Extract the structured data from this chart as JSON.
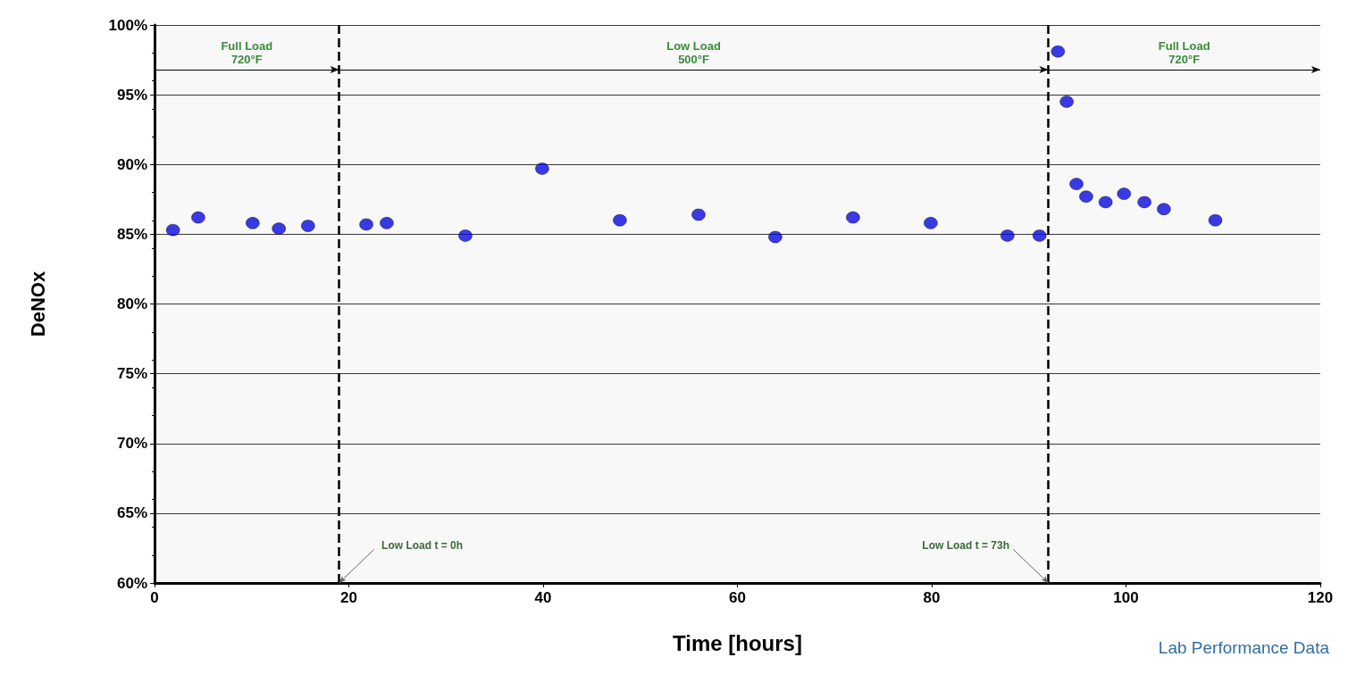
{
  "chart_data": {
    "type": "scatter",
    "xlabel": "Time [hours]",
    "ylabel": "DeNOx",
    "x": [
      1.9,
      4.5,
      10.1,
      12.8,
      15.8,
      21.8,
      23.9,
      32,
      39.9,
      47.9,
      56,
      63.9,
      71.9,
      79.9,
      87.8,
      91.1,
      93,
      93.9,
      94.9,
      95.9,
      97.9,
      99.8,
      101.9,
      103.9,
      109.2
    ],
    "values": [
      85.3,
      86.2,
      85.8,
      85.4,
      85.6,
      85.7,
      85.8,
      84.9,
      89.7,
      86.0,
      86.4,
      84.8,
      86.2,
      85.8,
      84.9,
      84.9,
      98.1,
      94.5,
      88.6,
      87.7,
      87.3,
      87.9,
      87.3,
      86.8,
      86.0
    ],
    "color": "#0a0ae0",
    "marker": "circle",
    "xlim": [
      0,
      120
    ],
    "xticks": [
      0,
      20,
      40,
      60,
      80,
      100,
      120
    ],
    "ylim": [
      60,
      100
    ],
    "yticks": [
      {
        "value": 60,
        "label": "60%"
      },
      {
        "value": 65,
        "label": "65%"
      },
      {
        "value": 70,
        "label": "70%"
      },
      {
        "value": 75,
        "label": "75%"
      },
      {
        "value": 80,
        "label": "80%"
      },
      {
        "value": 85,
        "label": "85%"
      },
      {
        "value": 90,
        "label": "90%"
      },
      {
        "value": 95,
        "label": "95%"
      },
      {
        "value": 100,
        "label": "100%"
      }
    ],
    "grid": "y",
    "ref_lines": [
      {
        "axis": "x",
        "value": 19,
        "line_style": "dashed",
        "color": "#000000"
      },
      {
        "axis": "x",
        "value": 92,
        "line_style": "dashed",
        "color": "#000000"
      }
    ],
    "bands": [
      {
        "axis": "x",
        "from": 0,
        "to": 19,
        "label": "Full Load\n720°F"
      },
      {
        "axis": "x",
        "from": 19,
        "to": 92,
        "label": "Low Load\n500°F"
      },
      {
        "axis": "x",
        "from": 92,
        "to": 120,
        "label": "Full Load\n720°F"
      }
    ],
    "annotations": [
      {
        "text": "Low Load t = 0h",
        "x": 19,
        "y": 60
      },
      {
        "text": "Low Load t = 73h",
        "x": 92,
        "y": 60
      },
      "Lab Performance Data"
    ]
  }
}
